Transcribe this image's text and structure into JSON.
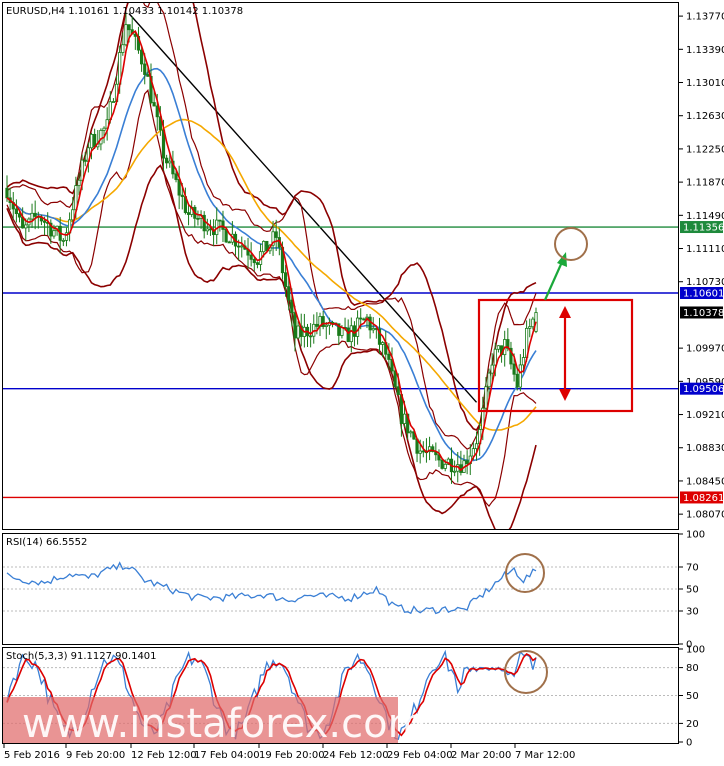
{
  "main": {
    "title": "EURUSD,H4  1.10161 1.10433 1.10142 1.10378",
    "y_ticks": [
      "1.13770",
      "1.13390",
      "1.13010",
      "1.12630",
      "1.12250",
      "1.11870",
      "1.11490",
      "1.11110",
      "1.10730",
      "1.09970",
      "1.09590",
      "1.09210",
      "1.08830",
      "1.08450",
      "1.08070"
    ],
    "price_tags": [
      {
        "label": "1.11356",
        "value": 1.11356,
        "bg": "#1e8a3c"
      },
      {
        "label": "1.10601",
        "value": 1.10601,
        "bg": "#0000cc"
      },
      {
        "label": "1.10378",
        "value": 1.10378,
        "bg": "#000000"
      },
      {
        "label": "1.09506",
        "value": 1.09506,
        "bg": "#0000cc"
      },
      {
        "label": "1.08261",
        "value": 1.08261,
        "bg": "#dd0000"
      }
    ]
  },
  "rsi": {
    "title": "RSI(14) 66.5552",
    "y_ticks": [
      "100",
      "70",
      "50",
      "30",
      "0"
    ]
  },
  "stoch": {
    "title": "Stoch(5,3,3) 91.1127 90.1401",
    "y_ticks": [
      "100",
      "80",
      "50",
      "20",
      "0"
    ]
  },
  "time_axis": [
    "5 Feb 2016",
    "9 Feb 20:00",
    "12 Feb 12:00",
    "17 Feb 04:00",
    "19 Feb 20:00",
    "24 Feb 12:00",
    "29 Feb 04:00",
    "2 Mar 20:00",
    "7 Mar 12:00"
  ],
  "watermark": "www.instaforex.com",
  "colors": {
    "candle": "#1a7a1a",
    "ma_fast": "#dd0000",
    "ma_mid": "#3a7fd5",
    "ma_slow": "#f5a800",
    "bands": "#8b0000",
    "support": "#0000cc",
    "resistance_green": "#1e8a3c",
    "support_red": "#dd0000",
    "rsi_line": "#3a7fd5",
    "stoch_main": "#3a7fd5",
    "stoch_signal": "#dd0000",
    "circle": "#a0704a",
    "box": "#dd0000",
    "arrow_green": "#1aa83a",
    "arrow_red": "#dd0000",
    "watermark_bg": "#e06b6b"
  },
  "chart_data": {
    "type": "candlestick",
    "title": "EURUSD,H4  1.10161 1.10433 1.10142 1.10378",
    "ylim": [
      1.079,
      1.1392
    ],
    "last": {
      "open": 1.10161,
      "high": 1.10433,
      "low": 1.10142,
      "close": 1.10378
    },
    "horizontal_levels": [
      1.11356,
      1.10601,
      1.09506,
      1.08261
    ],
    "close_path": [
      {
        "x": "5 Feb 2016",
        "y": 1.118
      },
      {
        "x": "9 Feb 20:00",
        "y": 1.13
      },
      {
        "x": "12 Feb 12:00",
        "y": 1.126
      },
      {
        "x": "17 Feb 04:00",
        "y": 1.115
      },
      {
        "x": "19 Feb 20:00",
        "y": 1.111
      },
      {
        "x": "24 Feb 12:00",
        "y": 1.101
      },
      {
        "x": "29 Feb 04:00",
        "y": 1.088
      },
      {
        "x": "2 Mar 20:00",
        "y": 1.096
      },
      {
        "x": "7 Mar 12:00",
        "y": 1.1038
      }
    ],
    "rsi": {
      "period": 14,
      "last": 66.5552,
      "ylim": [
        0,
        100
      ],
      "levels": [
        70,
        50,
        30
      ]
    },
    "stochastic": {
      "params": "5,3,3",
      "main_last": 91.1127,
      "signal_last": 90.1401,
      "ylim": [
        0,
        100
      ],
      "levels": [
        80,
        50,
        20
      ]
    }
  }
}
